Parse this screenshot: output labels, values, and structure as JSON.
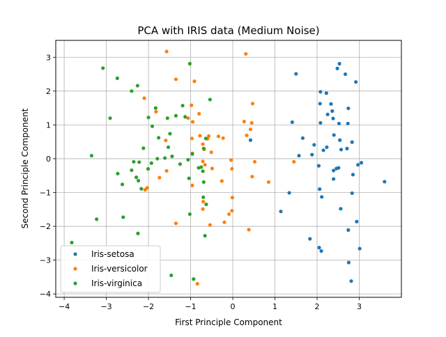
{
  "chart_data": {
    "type": "scatter",
    "title": "PCA with IRIS data (Medium Noise)",
    "xlabel": "First Principle Component",
    "ylabel": "Second Principle Component",
    "xlim": [
      -4.2,
      4.0
    ],
    "ylim": [
      -4.1,
      3.5
    ],
    "xticks": [
      -4,
      -3,
      -2,
      -1,
      0,
      1,
      2,
      3
    ],
    "yticks": [
      -4,
      -3,
      -2,
      -1,
      0,
      1,
      2,
      3
    ],
    "grid": true,
    "legend_position": "lower-left",
    "series": [
      {
        "name": "Iris-setosa",
        "color": "#1f77b4",
        "points": [
          [
            2.53,
            2.81
          ],
          [
            2.48,
            2.67
          ],
          [
            1.5,
            2.51
          ],
          [
            2.67,
            2.5
          ],
          [
            2.92,
            2.27
          ],
          [
            2.08,
            1.98
          ],
          [
            2.22,
            1.94
          ],
          [
            2.33,
            1.62
          ],
          [
            2.36,
            1.41
          ],
          [
            2.07,
            1.63
          ],
          [
            2.74,
            1.49
          ],
          [
            2.25,
            1.31
          ],
          [
            2.38,
            1.19
          ],
          [
            1.41,
            1.08
          ],
          [
            2.08,
            1.06
          ],
          [
            2.52,
            1.04
          ],
          [
            2.73,
            1.04
          ],
          [
            2.4,
            0.7
          ],
          [
            1.66,
            0.61
          ],
          [
            2.54,
            0.55
          ],
          [
            2.83,
            0.49
          ],
          [
            1.93,
            0.41
          ],
          [
            2.23,
            0.34
          ],
          [
            2.71,
            0.3
          ],
          [
            2.15,
            0.25
          ],
          [
            2.57,
            0.27
          ],
          [
            1.88,
            0.12
          ],
          [
            1.57,
            0.09
          ],
          [
            0.42,
            0.55
          ],
          [
            3.05,
            -0.12
          ],
          [
            2.97,
            -0.18
          ],
          [
            2.04,
            -0.21
          ],
          [
            2.51,
            -0.27
          ],
          [
            2.46,
            -0.29
          ],
          [
            2.39,
            -0.35
          ],
          [
            2.85,
            -0.47
          ],
          [
            2.39,
            -0.6
          ],
          [
            3.6,
            -0.68
          ],
          [
            2.06,
            -0.9
          ],
          [
            1.34,
            -1.01
          ],
          [
            2.83,
            -1.02
          ],
          [
            2.11,
            -1.13
          ],
          [
            1.14,
            -1.56
          ],
          [
            2.56,
            -1.48
          ],
          [
            2.94,
            -1.86
          ],
          [
            2.74,
            -2.11
          ],
          [
            1.83,
            -2.37
          ],
          [
            2.05,
            -2.63
          ],
          [
            2.1,
            -2.73
          ],
          [
            3.01,
            -2.66
          ],
          [
            2.75,
            -3.07
          ],
          [
            2.81,
            -3.62
          ]
        ]
      },
      {
        "name": "Iris-versicolor",
        "color": "#ff7f0e",
        "points": [
          [
            -1.57,
            3.17
          ],
          [
            0.31,
            3.1
          ],
          [
            -1.35,
            2.35
          ],
          [
            -0.91,
            2.29
          ],
          [
            -2.1,
            1.79
          ],
          [
            0.47,
            1.63
          ],
          [
            -1.82,
            1.39
          ],
          [
            -0.98,
            1.58
          ],
          [
            -0.8,
            1.33
          ],
          [
            -1.06,
            1.2
          ],
          [
            0.27,
            1.1
          ],
          [
            0.45,
            1.06
          ],
          [
            -0.95,
            1.09
          ],
          [
            0.42,
            0.87
          ],
          [
            0.33,
            0.69
          ],
          [
            -0.78,
            0.68
          ],
          [
            -0.57,
            0.67
          ],
          [
            -0.34,
            0.66
          ],
          [
            -0.23,
            0.61
          ],
          [
            -0.97,
            0.6
          ],
          [
            -0.6,
            0.59
          ],
          [
            -1.59,
            0.54
          ],
          [
            -0.71,
            0.43
          ],
          [
            -0.68,
            0.28
          ],
          [
            -0.51,
            0.19
          ],
          [
            -0.96,
            0.16
          ],
          [
            -0.04,
            -0.04
          ],
          [
            -0.71,
            -0.08
          ],
          [
            0.52,
            -0.09
          ],
          [
            1.45,
            -0.09
          ],
          [
            -0.66,
            -0.18
          ],
          [
            -0.49,
            -0.29
          ],
          [
            -0.02,
            -0.3
          ],
          [
            -1.57,
            -0.36
          ],
          [
            -1.74,
            -0.56
          ],
          [
            0.46,
            -0.53
          ],
          [
            -0.26,
            -0.66
          ],
          [
            0.85,
            -0.69
          ],
          [
            -0.96,
            -0.79
          ],
          [
            -2.03,
            -0.86
          ],
          [
            -2.08,
            -0.92
          ],
          [
            -0.01,
            -1.15
          ],
          [
            -0.7,
            -1.27
          ],
          [
            -0.71,
            -1.49
          ],
          [
            -0.02,
            -1.54
          ],
          [
            -0.09,
            -1.64
          ],
          [
            -0.2,
            -1.88
          ],
          [
            -1.35,
            -1.91
          ],
          [
            -0.54,
            -1.96
          ],
          [
            0.38,
            -2.1
          ],
          [
            -0.84,
            -3.7
          ]
        ]
      },
      {
        "name": "Iris-virginica",
        "color": "#2ca02c",
        "points": [
          [
            -1.02,
            2.81
          ],
          [
            -3.08,
            2.68
          ],
          [
            -2.74,
            2.38
          ],
          [
            -2.4,
            2.0
          ],
          [
            -2.26,
            2.16
          ],
          [
            -1.83,
            1.5
          ],
          [
            -1.19,
            1.57
          ],
          [
            -0.54,
            1.75
          ],
          [
            -2.91,
            1.2
          ],
          [
            -1.35,
            1.27
          ],
          [
            -1.13,
            1.24
          ],
          [
            -2.0,
            1.22
          ],
          [
            -1.55,
            1.2
          ],
          [
            -1.91,
            0.96
          ],
          [
            -1.49,
            0.74
          ],
          [
            -1.76,
            0.62
          ],
          [
            -0.64,
            0.6
          ],
          [
            -1.53,
            0.34
          ],
          [
            -2.12,
            0.31
          ],
          [
            -0.69,
            0.3
          ],
          [
            -0.96,
            0.14
          ],
          [
            -3.35,
            0.09
          ],
          [
            -1.44,
            0.07
          ],
          [
            -1.61,
            0.02
          ],
          [
            -1.79,
            0.0
          ],
          [
            -1.06,
            -0.03
          ],
          [
            -2.35,
            -0.09
          ],
          [
            -2.22,
            -0.1
          ],
          [
            -1.93,
            -0.13
          ],
          [
            -1.25,
            -0.16
          ],
          [
            -0.75,
            -0.25
          ],
          [
            -2.01,
            -0.3
          ],
          [
            -0.81,
            -0.27
          ],
          [
            -0.71,
            -0.37
          ],
          [
            -2.4,
            -0.34
          ],
          [
            -2.73,
            -0.44
          ],
          [
            -2.29,
            -0.55
          ],
          [
            -1.04,
            -0.58
          ],
          [
            -2.24,
            -0.65
          ],
          [
            -0.69,
            -0.69
          ],
          [
            -2.62,
            -0.76
          ],
          [
            -2.17,
            -0.89
          ],
          [
            -0.7,
            -1.14
          ],
          [
            -0.63,
            -1.35
          ],
          [
            -1.02,
            -1.64
          ],
          [
            -2.6,
            -1.73
          ],
          [
            -3.23,
            -1.79
          ],
          [
            -2.25,
            -2.21
          ],
          [
            -0.66,
            -2.28
          ],
          [
            -3.82,
            -2.48
          ],
          [
            -1.46,
            -3.45
          ],
          [
            -0.93,
            -3.56
          ]
        ]
      }
    ]
  }
}
